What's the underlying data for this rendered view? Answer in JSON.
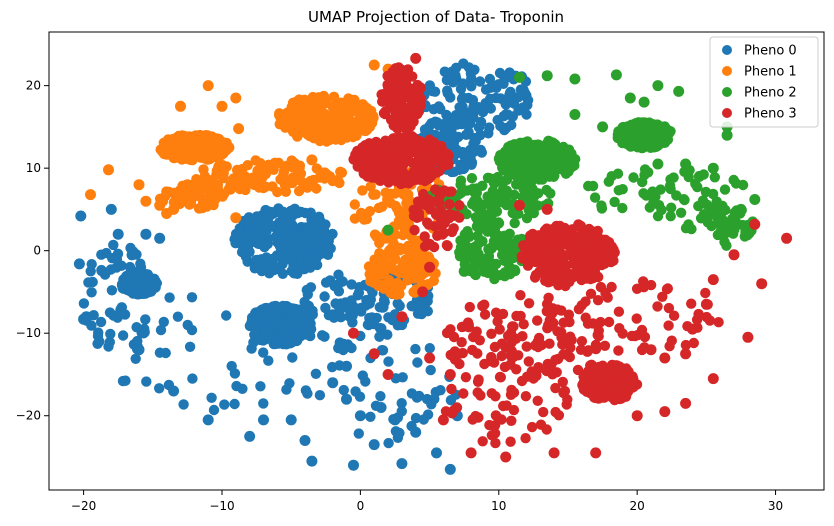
{
  "chart_data": {
    "type": "scatter",
    "title": "UMAP Projection of Data- Troponin",
    "xlabel": "",
    "ylabel": "",
    "xlim": [
      -22.5,
      33.5
    ],
    "ylim": [
      -29,
      26.5
    ],
    "xticks": [
      -20,
      -10,
      0,
      10,
      20,
      30
    ],
    "yticks": [
      -20,
      -10,
      0,
      10,
      20
    ],
    "xtick_labels": [
      "−20",
      "−10",
      "0",
      "10",
      "20",
      "30"
    ],
    "ytick_labels": [
      "−20",
      "−10",
      "0",
      "10",
      "20"
    ],
    "grid": false,
    "legend_position": "top-right",
    "series": [
      {
        "name": "Pheno 0",
        "color": "#1f77b4",
        "clusters": [
          {
            "cx": -5.5,
            "cy": 1.2,
            "rx": 3.6,
            "ry": 4.2,
            "density": "dense"
          },
          {
            "cx": -5.8,
            "cy": -9.0,
            "rx": 2.3,
            "ry": 2.4,
            "density": "dense"
          },
          {
            "cx": -16.0,
            "cy": -4.0,
            "rx": 1.3,
            "ry": 1.3,
            "density": "dense"
          },
          {
            "cx": 8.5,
            "cy": 18.5,
            "rx": 4.0,
            "ry": 4.5,
            "density": "medium"
          },
          {
            "cx": 6.5,
            "cy": 13.0,
            "rx": 2.5,
            "ry": 3.5,
            "density": "medium"
          },
          {
            "cx": 0.5,
            "cy": -6.0,
            "rx": 5.0,
            "ry": 3.5,
            "density": "medium"
          },
          {
            "cx": -10.0,
            "cy": -12.0,
            "rx": 8.5,
            "ry": 7.5,
            "density": "sparse"
          },
          {
            "cx": 1.5,
            "cy": -17.0,
            "rx": 5.5,
            "ry": 7.0,
            "density": "sparse"
          },
          {
            "cx": -17.5,
            "cy": -6.0,
            "rx": 2.5,
            "ry": 7.0,
            "density": "sparse"
          }
        ],
        "points": [
          [
            -20.2,
            4.2
          ],
          [
            -20.3,
            -1.6
          ],
          [
            -19.8,
            -8.0
          ],
          [
            -20.0,
            -8.3
          ],
          [
            -18.0,
            5.0
          ],
          [
            -17.5,
            2.0
          ],
          [
            -15.5,
            2.0
          ],
          [
            -14.5,
            1.5
          ],
          [
            -16.5,
            -0.5
          ],
          [
            -16.0,
            -12.0
          ],
          [
            -13.5,
            -17.0
          ],
          [
            -11.0,
            -20.5
          ],
          [
            -8.0,
            -22.5
          ],
          [
            -7.0,
            -20.5
          ],
          [
            -5.0,
            -20.5
          ],
          [
            -4.0,
            -23.0
          ],
          [
            -3.5,
            -25.5
          ],
          [
            -0.5,
            -26.0
          ],
          [
            1.0,
            -23.5
          ],
          [
            3.0,
            -25.8
          ],
          [
            6.5,
            -26.5
          ],
          [
            7.0,
            -20.0
          ],
          [
            5.5,
            -24.5
          ],
          [
            4.0,
            -22.0
          ],
          [
            2.5,
            -20.5
          ],
          [
            -1.0,
            -18.0
          ],
          [
            -2.0,
            -16.0
          ],
          [
            -1.0,
            -14.0
          ],
          [
            0.0,
            -20.0
          ],
          [
            1.5,
            -19.0
          ]
        ]
      },
      {
        "name": "Pheno 1",
        "color": "#ff7f0e",
        "clusters": [
          {
            "cx": -2.5,
            "cy": 16.0,
            "rx": 3.5,
            "ry": 2.8,
            "density": "dense"
          },
          {
            "cx": -12.0,
            "cy": 12.5,
            "rx": 2.5,
            "ry": 1.6,
            "density": "dense"
          },
          {
            "cx": -6.5,
            "cy": 9.0,
            "rx": 5.5,
            "ry": 2.0,
            "density": "medium"
          },
          {
            "cx": 3.0,
            "cy": 5.0,
            "rx": 3.5,
            "ry": 5.5,
            "density": "medium"
          },
          {
            "cx": 3.0,
            "cy": -2.5,
            "rx": 2.5,
            "ry": 3.0,
            "density": "medium"
          },
          {
            "cx": -12.0,
            "cy": 6.5,
            "rx": 2.5,
            "ry": 1.5,
            "density": "sparse"
          }
        ],
        "points": [
          [
            -19.5,
            6.8
          ],
          [
            -18.2,
            9.8
          ],
          [
            -16.0,
            8.0
          ],
          [
            -15.5,
            6.0
          ],
          [
            -13.0,
            17.5
          ],
          [
            -11.0,
            20.0
          ],
          [
            -9.0,
            18.5
          ],
          [
            -10.0,
            17.5
          ],
          [
            -8.8,
            14.8
          ],
          [
            -9.5,
            12.5
          ],
          [
            1.0,
            22.5
          ],
          [
            2.0,
            22.0
          ],
          [
            -14.5,
            5.5
          ],
          [
            -14.0,
            4.5
          ],
          [
            -12.5,
            8.0
          ],
          [
            -9.0,
            4.0
          ],
          [
            -13.5,
            5.0
          ],
          [
            -3.5,
            11.0
          ]
        ]
      },
      {
        "name": "Pheno 2",
        "color": "#2ca02c",
        "clusters": [
          {
            "cx": 12.8,
            "cy": 11.0,
            "rx": 2.8,
            "ry": 2.5,
            "density": "dense"
          },
          {
            "cx": 20.5,
            "cy": 14.0,
            "rx": 2.0,
            "ry": 1.6,
            "density": "dense"
          },
          {
            "cx": 9.5,
            "cy": 6.0,
            "rx": 4.5,
            "ry": 3.0,
            "density": "medium"
          },
          {
            "cx": 9.5,
            "cy": 0.0,
            "rx": 2.5,
            "ry": 3.5,
            "density": "medium"
          },
          {
            "cx": 22.0,
            "cy": 7.0,
            "rx": 6.0,
            "ry": 3.0,
            "density": "sparse"
          },
          {
            "cx": 26.0,
            "cy": 3.0,
            "rx": 2.5,
            "ry": 2.5,
            "density": "sparse"
          }
        ],
        "points": [
          [
            11.5,
            21.0
          ],
          [
            13.5,
            21.2
          ],
          [
            15.5,
            20.8
          ],
          [
            18.5,
            21.3
          ],
          [
            21.5,
            20.0
          ],
          [
            23.0,
            19.3
          ],
          [
            19.5,
            18.5
          ],
          [
            20.5,
            18.0
          ],
          [
            15.5,
            16.5
          ],
          [
            26.5,
            15.0
          ],
          [
            26.5,
            14.0
          ],
          [
            28.5,
            6.2
          ],
          [
            27.5,
            5.0
          ],
          [
            17.5,
            15.0
          ],
          [
            23.5,
            10.5
          ],
          [
            25.5,
            10.0
          ],
          [
            24.5,
            9.0
          ],
          [
            21.5,
            10.5
          ],
          [
            2.0,
            2.5
          ],
          [
            7.5,
            -2.5
          ]
        ]
      },
      {
        "name": "Pheno 3",
        "color": "#d62728",
        "clusters": [
          {
            "cx": 15.0,
            "cy": -0.5,
            "rx": 3.5,
            "ry": 3.8,
            "density": "dense"
          },
          {
            "cx": 3.0,
            "cy": 11.0,
            "rx": 3.5,
            "ry": 3.0,
            "density": "dense"
          },
          {
            "cx": 18.0,
            "cy": -16.0,
            "rx": 2.0,
            "ry": 2.2,
            "density": "dense"
          },
          {
            "cx": 3.0,
            "cy": 18.5,
            "rx": 1.5,
            "ry": 3.8,
            "density": "medium"
          },
          {
            "cx": 12.0,
            "cy": -10.5,
            "rx": 6.0,
            "ry": 5.5,
            "density": "medium"
          },
          {
            "cx": 20.0,
            "cy": -8.0,
            "rx": 6.5,
            "ry": 4.5,
            "density": "sparse"
          },
          {
            "cx": 10.5,
            "cy": -18.0,
            "rx": 4.5,
            "ry": 5.5,
            "density": "sparse"
          },
          {
            "cx": 5.5,
            "cy": 4.0,
            "rx": 1.8,
            "ry": 4.0,
            "density": "sparse"
          }
        ],
        "points": [
          [
            6.0,
            -20.5
          ],
          [
            8.0,
            -24.5
          ],
          [
            10.5,
            -25.0
          ],
          [
            14.0,
            -24.5
          ],
          [
            17.0,
            -24.5
          ],
          [
            20.0,
            -20.0
          ],
          [
            22.0,
            -19.5
          ],
          [
            23.5,
            -18.5
          ],
          [
            25.5,
            -15.5
          ],
          [
            28.0,
            -10.5
          ],
          [
            29.0,
            -4.0
          ],
          [
            30.8,
            1.5
          ],
          [
            28.5,
            3.2
          ],
          [
            27.0,
            -0.5
          ],
          [
            25.5,
            -3.5
          ],
          [
            25.0,
            -6.5
          ],
          [
            24.0,
            -9.5
          ],
          [
            23.5,
            -12.5
          ],
          [
            22.0,
            -13.0
          ],
          [
            21.0,
            -12.0
          ],
          [
            11.5,
            5.5
          ],
          [
            13.5,
            5.0
          ],
          [
            5.0,
            -2.0
          ],
          [
            4.5,
            -5.0
          ],
          [
            3.0,
            -8.0
          ],
          [
            -0.5,
            -10.0
          ],
          [
            1.0,
            -12.5
          ],
          [
            2.0,
            -15.0
          ],
          [
            6.5,
            -15.0
          ],
          [
            5.0,
            -13.0
          ],
          [
            4.0,
            23.3
          ]
        ]
      }
    ]
  }
}
